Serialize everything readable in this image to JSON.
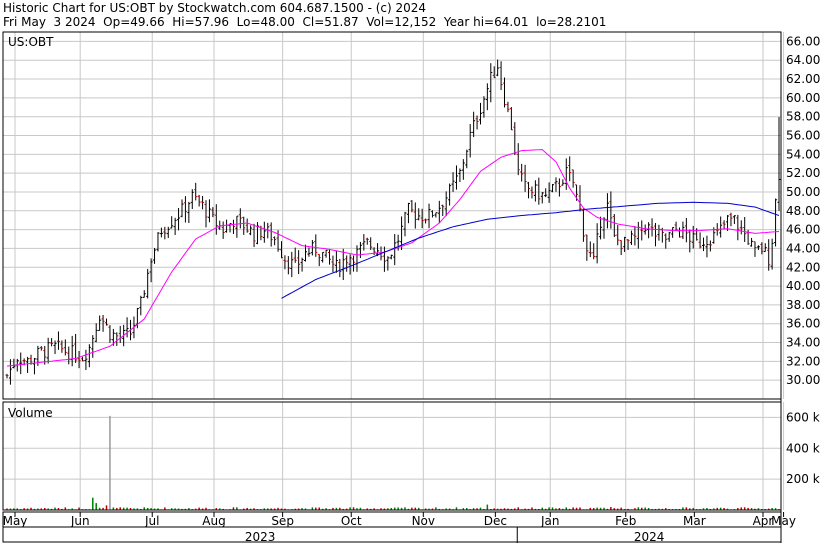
{
  "header": {
    "line1": "Historic Chart for US:OBT by Stockwatch.com 604.687.1500 - (c) 2024",
    "line2": "Fri May  3 2024  Op=49.66  Hi=57.96  Lo=48.00  Cl=51.87  Vol=12,152  Year hi=64.01  lo=28.2101"
  },
  "chart_data": {
    "type": "candlestick",
    "symbol_label": "US:OBT",
    "volume_label": "Volume",
    "colors": {
      "up": "#000000",
      "down": "#c00000",
      "ma_short": "#ff00ff",
      "ma_long": "#0000cc",
      "grid": "#c8c8c8",
      "vol_up": "#008000",
      "vol_down": "#c00000"
    },
    "price_axis": {
      "min": 30,
      "max": 66,
      "step": 2,
      "ticks": [
        "66.00",
        "64.00",
        "62.00",
        "60.00",
        "58.00",
        "56.00",
        "54.00",
        "52.00",
        "50.00",
        "48.00",
        "46.00",
        "44.00",
        "42.00",
        "40.00",
        "38.00",
        "36.00",
        "34.00",
        "32.00",
        "30.00"
      ]
    },
    "volume_axis": {
      "max": 700000,
      "ticks": [
        "600 k",
        "400 k",
        "200 k"
      ],
      "tick_values": [
        600000,
        400000,
        200000
      ]
    },
    "months": [
      "May",
      "Jun",
      "Jul",
      "Aug",
      "Sep",
      "Oct",
      "Nov",
      "Dec",
      "Jan",
      "Feb",
      "Mar",
      "Apr",
      "May"
    ],
    "years": [
      "2023",
      "2024"
    ],
    "year_of_month": [
      0,
      0,
      0,
      0,
      0,
      0,
      0,
      0,
      1,
      1,
      1,
      1,
      1
    ],
    "price_keypoints": [
      [
        0,
        30.5
      ],
      [
        3,
        32.5
      ],
      [
        6,
        32
      ],
      [
        10,
        33
      ],
      [
        14,
        33.5
      ],
      [
        18,
        33
      ],
      [
        22,
        32.5
      ],
      [
        24,
        33.5
      ],
      [
        27,
        37
      ],
      [
        30,
        35
      ],
      [
        33,
        34.5
      ],
      [
        36,
        35
      ],
      [
        39,
        38
      ],
      [
        42,
        43
      ],
      [
        45,
        46
      ],
      [
        48,
        47
      ],
      [
        51,
        48
      ],
      [
        54,
        49.5
      ],
      [
        57,
        48.5
      ],
      [
        60,
        47
      ],
      [
        63,
        46
      ],
      [
        66,
        47
      ],
      [
        69,
        46.5
      ],
      [
        72,
        45.5
      ],
      [
        75,
        46
      ],
      [
        78,
        45
      ],
      [
        81,
        43
      ],
      [
        84,
        42
      ],
      [
        87,
        43.5
      ],
      [
        90,
        44
      ],
      [
        93,
        43
      ],
      [
        96,
        42
      ],
      [
        99,
        43
      ],
      [
        102,
        43.5
      ],
      [
        105,
        44.5
      ],
      [
        108,
        44
      ],
      [
        111,
        43
      ],
      [
        114,
        45
      ],
      [
        117,
        48
      ],
      [
        120,
        47.5
      ],
      [
        123,
        47.5
      ],
      [
        126,
        48.5
      ],
      [
        129,
        50
      ],
      [
        132,
        52
      ],
      [
        135,
        56
      ],
      [
        138,
        59
      ],
      [
        141,
        62
      ],
      [
        143,
        63.5
      ],
      [
        145,
        60
      ],
      [
        147,
        57
      ],
      [
        149,
        52
      ],
      [
        151,
        50.5
      ],
      [
        154,
        50
      ],
      [
        157,
        49.5
      ],
      [
        160,
        50.5
      ],
      [
        163,
        52
      ],
      [
        165,
        51
      ],
      [
        167,
        48
      ],
      [
        169,
        44
      ],
      [
        171,
        42.5
      ],
      [
        173,
        47
      ],
      [
        175,
        48.5
      ],
      [
        177,
        45
      ],
      [
        180,
        44.5
      ],
      [
        183,
        45
      ],
      [
        186,
        46.5
      ],
      [
        189,
        45.5
      ],
      [
        192,
        45
      ],
      [
        195,
        46
      ],
      [
        198,
        45.5
      ],
      [
        201,
        44.5
      ],
      [
        204,
        45
      ],
      [
        207,
        45.5
      ],
      [
        210,
        47
      ],
      [
        212,
        47
      ],
      [
        214,
        46
      ],
      [
        216,
        45
      ],
      [
        218,
        43.5
      ],
      [
        220,
        44
      ],
      [
        222,
        43
      ],
      [
        223,
        45
      ],
      [
        224,
        49
      ],
      [
        225,
        52
      ]
    ],
    "ma_short_keypoints": [
      [
        0,
        31.5
      ],
      [
        20,
        32.3
      ],
      [
        30,
        33.6
      ],
      [
        40,
        36.5
      ],
      [
        48,
        41.5
      ],
      [
        55,
        45
      ],
      [
        62,
        46.4
      ],
      [
        70,
        46.7
      ],
      [
        78,
        45.7
      ],
      [
        86,
        44.3
      ],
      [
        94,
        43.9
      ],
      [
        102,
        43.3
      ],
      [
        110,
        43.6
      ],
      [
        118,
        44.6
      ],
      [
        126,
        46.7
      ],
      [
        132,
        49.2
      ],
      [
        138,
        52.2
      ],
      [
        144,
        53.7
      ],
      [
        150,
        54.4
      ],
      [
        156,
        54.5
      ],
      [
        160,
        53.2
      ],
      [
        164,
        50.4
      ],
      [
        168,
        48.3
      ],
      [
        172,
        47.3
      ],
      [
        178,
        46.6
      ],
      [
        186,
        46.1
      ],
      [
        194,
        45.9
      ],
      [
        202,
        45.9
      ],
      [
        210,
        46.1
      ],
      [
        218,
        45.6
      ],
      [
        225,
        45.8
      ]
    ],
    "ma_long_keypoints": [
      [
        80,
        38.7
      ],
      [
        90,
        40.7
      ],
      [
        100,
        42.1
      ],
      [
        110,
        43.6
      ],
      [
        120,
        45.1
      ],
      [
        130,
        46.3
      ],
      [
        140,
        47.1
      ],
      [
        150,
        47.5
      ],
      [
        160,
        47.8
      ],
      [
        170,
        48.2
      ],
      [
        180,
        48.5
      ],
      [
        190,
        48.8
      ],
      [
        200,
        48.9
      ],
      [
        210,
        48.8
      ],
      [
        218,
        48.4
      ],
      [
        225,
        47.5
      ]
    ],
    "volume_spike": {
      "index": 30,
      "value": 610000
    },
    "volume_bumps": [
      [
        25,
        80000
      ],
      [
        26,
        45000
      ],
      [
        29,
        30000
      ],
      [
        140,
        35000
      ],
      [
        176,
        20000
      ],
      [
        224,
        12152
      ]
    ]
  }
}
